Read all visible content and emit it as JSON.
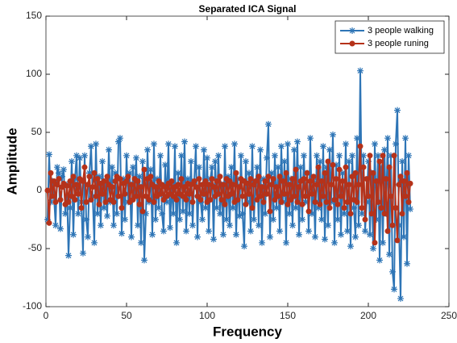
{
  "chart_data": {
    "type": "line",
    "title": "Separated ICA Signal",
    "xlabel": "Frequency",
    "ylabel": "Amplitude",
    "xlim": [
      0,
      250
    ],
    "xticks": [
      0,
      50,
      100,
      150,
      200,
      250
    ],
    "ylim": [
      -100,
      150
    ],
    "yticks": [
      -100,
      -50,
      0,
      50,
      100,
      150
    ],
    "grid": false,
    "legend": "northeast",
    "x": [
      1,
      2,
      3,
      4,
      5,
      6,
      7,
      8,
      9,
      10,
      11,
      12,
      13,
      14,
      15,
      16,
      17,
      18,
      19,
      20,
      21,
      22,
      23,
      24,
      25,
      26,
      27,
      28,
      29,
      30,
      31,
      32,
      33,
      34,
      35,
      36,
      37,
      38,
      39,
      40,
      41,
      42,
      43,
      44,
      45,
      46,
      47,
      48,
      49,
      50,
      51,
      52,
      53,
      54,
      55,
      56,
      57,
      58,
      59,
      60,
      61,
      62,
      63,
      64,
      65,
      66,
      67,
      68,
      69,
      70,
      71,
      72,
      73,
      74,
      75,
      76,
      77,
      78,
      79,
      80,
      81,
      82,
      83,
      84,
      85,
      86,
      87,
      88,
      89,
      90,
      91,
      92,
      93,
      94,
      95,
      96,
      97,
      98,
      99,
      100,
      101,
      102,
      103,
      104,
      105,
      106,
      107,
      108,
      109,
      110,
      111,
      112,
      113,
      114,
      115,
      116,
      117,
      118,
      119,
      120,
      121,
      122,
      123,
      124,
      125,
      126,
      127,
      128,
      129,
      130,
      131,
      132,
      133,
      134,
      135,
      136,
      137,
      138,
      139,
      140,
      141,
      142,
      143,
      144,
      145,
      146,
      147,
      148,
      149,
      150,
      151,
      152,
      153,
      154,
      155,
      156,
      157,
      158,
      159,
      160,
      161,
      162,
      163,
      164,
      165,
      166,
      167,
      168,
      169,
      170,
      171,
      172,
      173,
      174,
      175,
      176,
      177,
      178,
      179,
      180,
      181,
      182,
      183,
      184,
      185,
      186,
      187,
      188,
      189,
      190,
      191,
      192,
      193,
      194,
      195,
      196,
      197,
      198,
      199,
      200,
      201,
      202,
      203,
      204,
      205,
      206,
      207,
      208,
      209,
      210,
      211,
      212,
      213,
      214,
      215,
      216,
      217,
      218,
      219,
      220,
      221,
      222,
      223,
      224,
      225,
      226
    ],
    "series": [
      {
        "name": "3 people walking",
        "color": "#2e75b6",
        "marker": "star",
        "values": [
          -25,
          31,
          -10,
          8,
          -5,
          -30,
          20,
          15,
          -33,
          12,
          18,
          -20,
          5,
          -56,
          -15,
          25,
          -38,
          10,
          30,
          -20,
          28,
          -10,
          -54,
          30,
          -25,
          -40,
          15,
          38,
          -5,
          -45,
          40,
          -20,
          12,
          -30,
          25,
          -15,
          8,
          -22,
          35,
          -10,
          20,
          -30,
          15,
          -20,
          42,
          45,
          -37,
          10,
          -25,
          30,
          -10,
          15,
          -40,
          20,
          -5,
          28,
          -30,
          12,
          -45,
          25,
          -60,
          -20,
          35,
          -10,
          18,
          -38,
          40,
          -25,
          10,
          -15,
          30,
          -20,
          -35,
          22,
          -10,
          40,
          -32,
          5,
          -20,
          38,
          -45,
          15,
          -25,
          30,
          -18,
          42,
          -35,
          10,
          -20,
          25,
          -30,
          8,
          38,
          -40,
          20,
          -10,
          -25,
          35,
          -15,
          28,
          -35,
          10,
          20,
          -42,
          25,
          -15,
          30,
          -20,
          5,
          -38,
          38,
          -25,
          12,
          -30,
          20,
          -15,
          40,
          -38,
          10,
          -22,
          30,
          -20,
          -48,
          25,
          -10,
          15,
          -35,
          38,
          -25,
          5,
          20,
          -30,
          35,
          -45,
          10,
          -20,
          28,
          57,
          -40,
          15,
          -25,
          30,
          -15,
          20,
          -35,
          38,
          -10,
          25,
          -45,
          40,
          -20,
          10,
          -30,
          35,
          -15,
          42,
          -38,
          20,
          -25,
          30,
          -10,
          15,
          -35,
          45,
          -20,
          8,
          -40,
          30,
          -15,
          25,
          -25,
          38,
          -42,
          20,
          -30,
          35,
          -10,
          48,
          -45,
          22,
          -25,
          30,
          -38,
          15,
          -20,
          40,
          -35,
          25,
          -48,
          30,
          -15,
          -40,
          45,
          -30,
          103,
          -20,
          30,
          -35,
          -10,
          25,
          -38,
          15,
          -50,
          40,
          -25,
          30,
          -60,
          20,
          -45,
          35,
          -20,
          45,
          -55,
          30,
          -70,
          -85,
          40,
          69,
          -30,
          -93,
          25,
          -40,
          45,
          -63,
          30,
          -16
        ]
      },
      {
        "name": "3 people runing",
        "color": "#b5321a",
        "marker": "circle",
        "values": [
          0,
          -28,
          15,
          -5,
          8,
          -10,
          5,
          10,
          -8,
          3,
          6,
          -12,
          4,
          -10,
          8,
          -5,
          12,
          -8,
          5,
          -3,
          10,
          -15,
          8,
          20,
          -10,
          5,
          12,
          -8,
          3,
          15,
          -5,
          10,
          -12,
          6,
          -3,
          8,
          -10,
          12,
          5,
          -8,
          3,
          -10,
          8,
          12,
          -5,
          10,
          -15,
          6,
          -3,
          8,
          12,
          -10,
          5,
          -8,
          10,
          -5,
          8,
          -12,
          3,
          -18,
          18,
          -5,
          10,
          -8,
          12,
          5,
          -10,
          3,
          -5,
          8,
          -3,
          5,
          -8,
          3,
          -5,
          6,
          -3,
          8,
          -5,
          3,
          -8,
          5,
          -3,
          10,
          -5,
          3,
          -8,
          6,
          -3,
          5,
          -10,
          8,
          3,
          -5,
          10,
          -8,
          5,
          -3,
          8,
          -10,
          5,
          -8,
          10,
          3,
          -5,
          8,
          -3,
          12,
          -8,
          5,
          -12,
          10,
          -5,
          8,
          -3,
          5,
          -10,
          15,
          -8,
          3,
          10,
          -5,
          8,
          -12,
          6,
          -3,
          10,
          -15,
          5,
          8,
          -8,
          12,
          -5,
          3,
          -10,
          8,
          -3,
          12,
          -18,
          5,
          10,
          -8,
          3,
          -5,
          12,
          -10,
          8,
          -3,
          15,
          -12,
          5,
          -8,
          10,
          -5,
          18,
          -10,
          3,
          8,
          -12,
          10,
          -5,
          15,
          -18,
          8,
          -3,
          12,
          -10,
          5,
          20,
          -12,
          8,
          -5,
          15,
          -10,
          25,
          -15,
          5,
          22,
          -8,
          10,
          -12,
          18,
          -5,
          8,
          -15,
          20,
          -10,
          5,
          -20,
          12,
          -8,
          15,
          -10,
          5,
          38,
          -15,
          20,
          -25,
          10,
          -5,
          30,
          -20,
          15,
          -45,
          8,
          -10,
          25,
          -15,
          30,
          -20,
          10,
          -35,
          20,
          -5,
          -30,
          30,
          -15,
          -43,
          5,
          12,
          -20,
          8,
          -5,
          15,
          -10,
          6
        ]
      }
    ]
  }
}
